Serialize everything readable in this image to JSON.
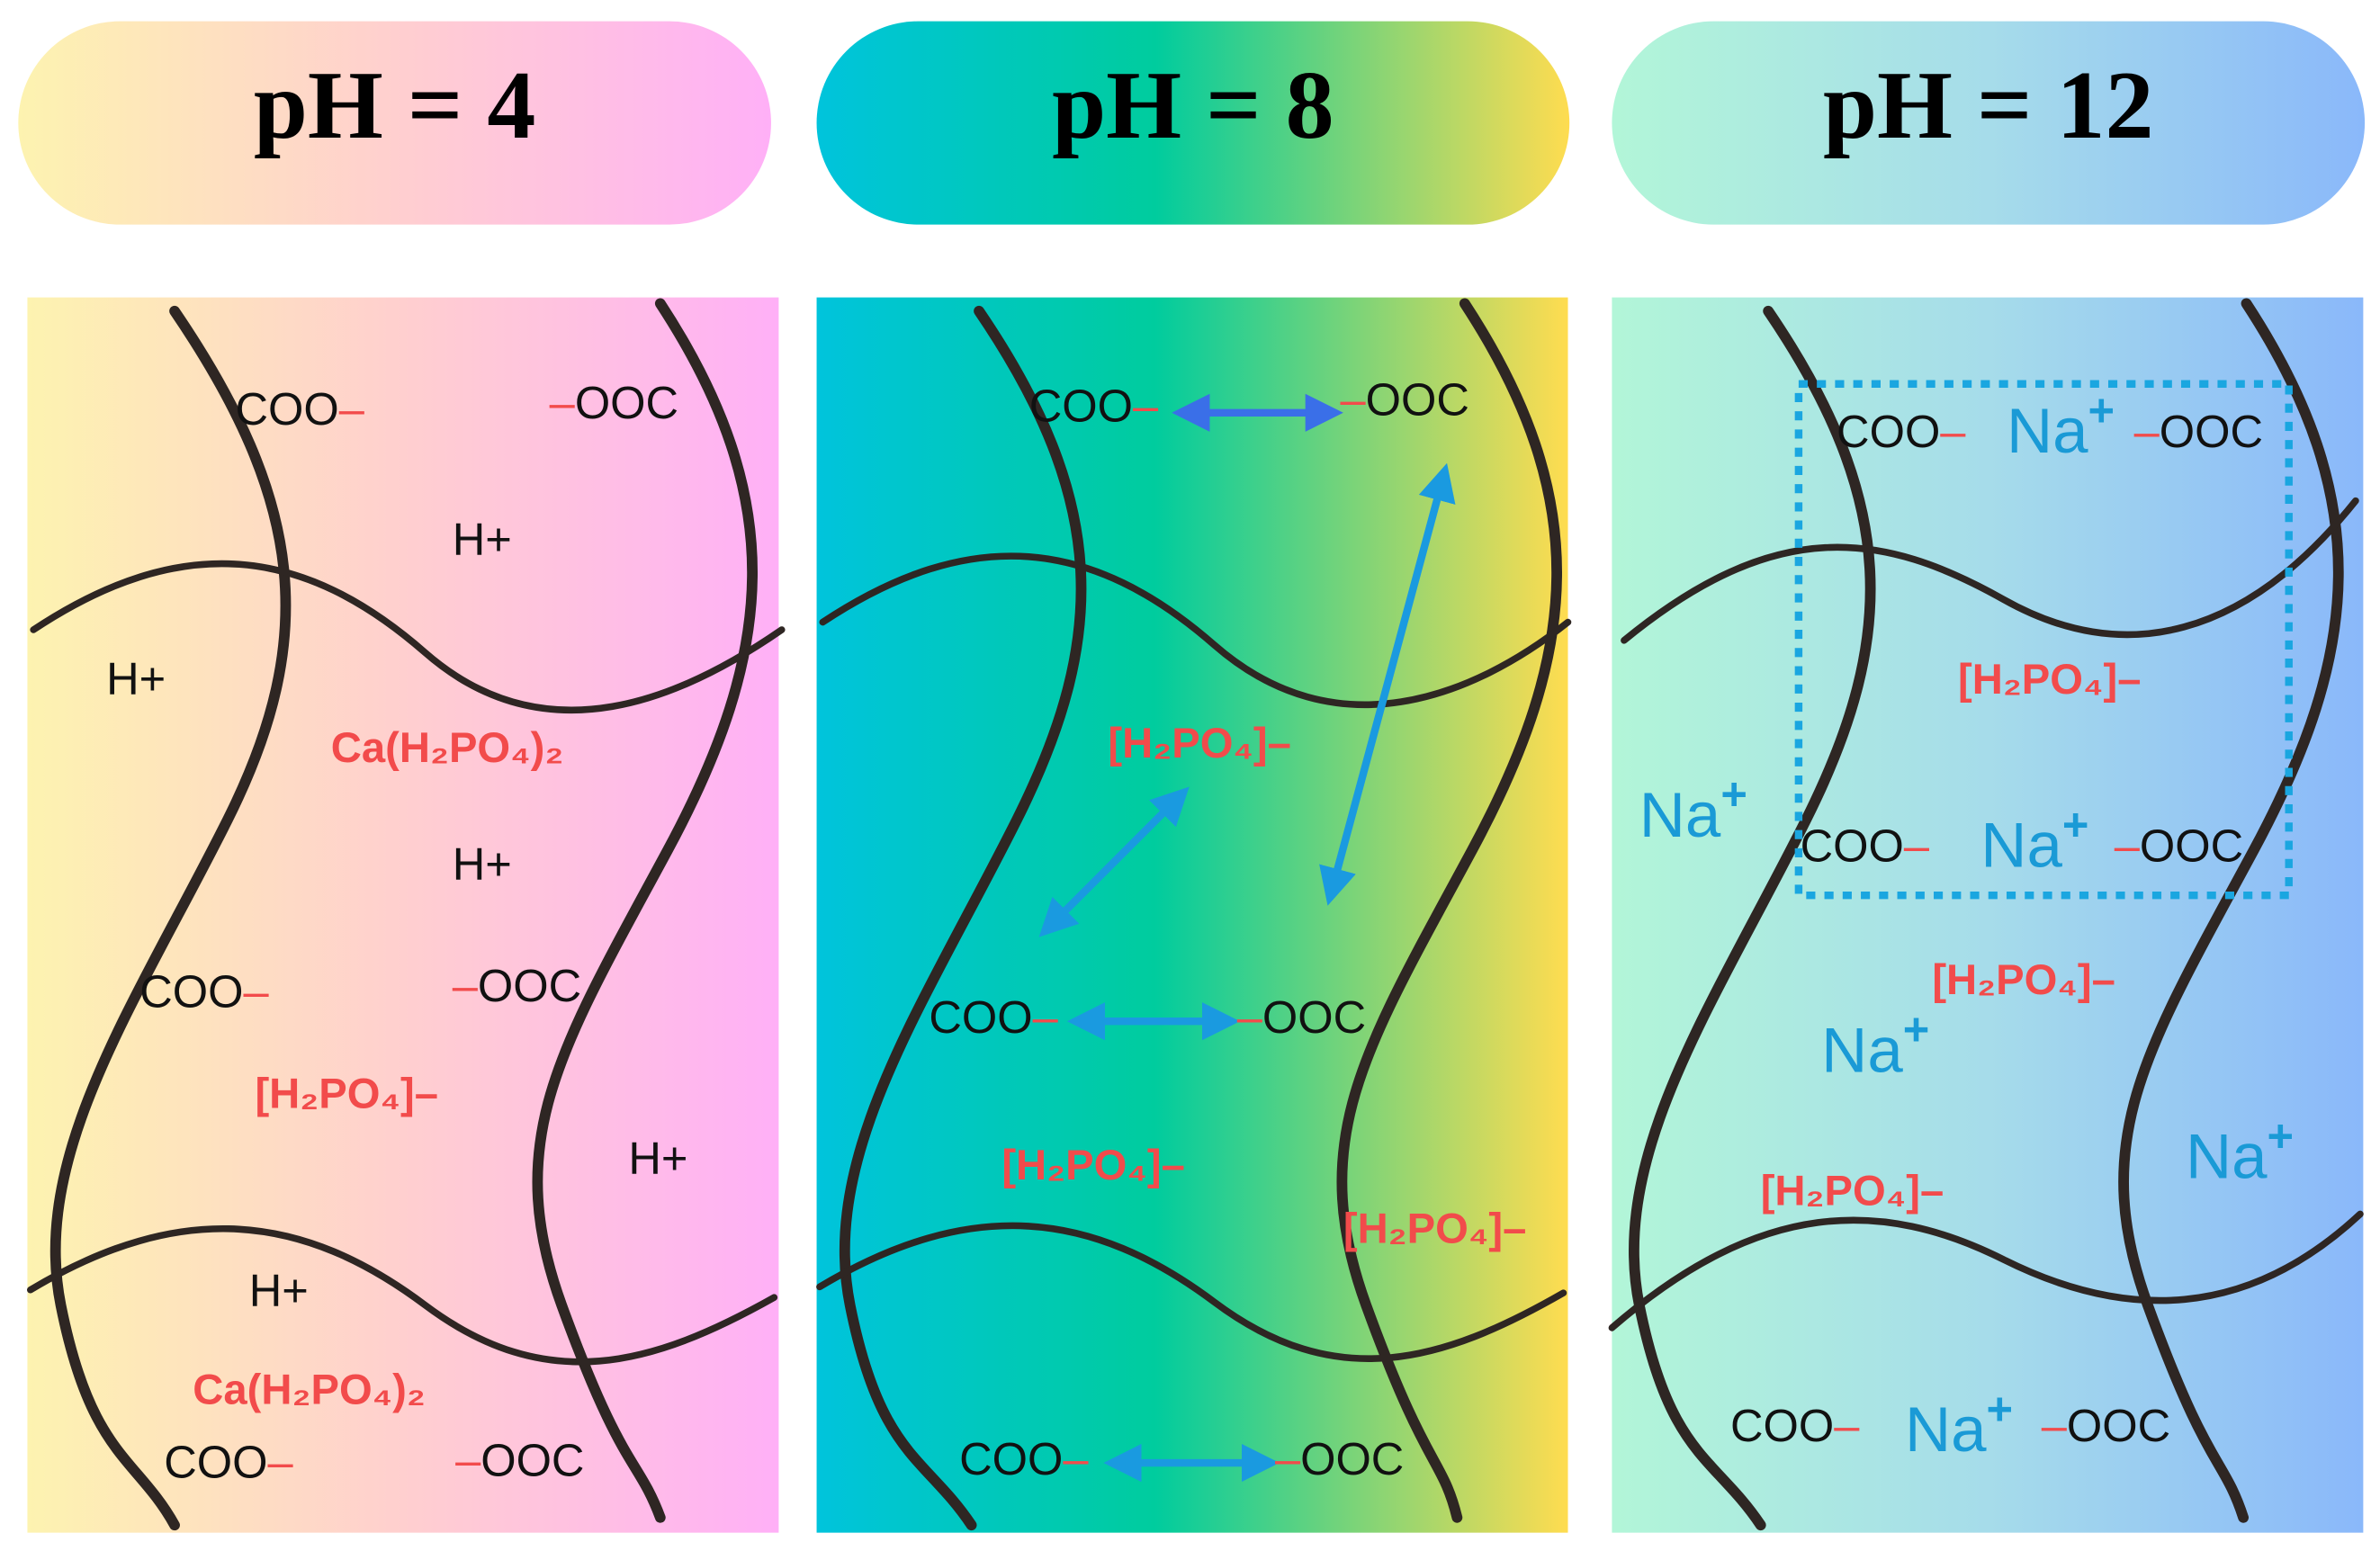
{
  "headers": [
    "pH = 4",
    "pH = 8",
    "pH = 12"
  ],
  "panels": [
    {
      "labels": [
        {
          "text": "COO",
          "post": "–"
        },
        {
          "pre": "–",
          "text": "OOC"
        },
        {
          "text": "H+"
        },
        {
          "text": "H+"
        },
        {
          "text": "Ca(H₂PO₄)₂",
          "color": "#f24b4b"
        },
        {
          "text": "H+"
        },
        {
          "text": "COO",
          "post": "–"
        },
        {
          "pre": "–",
          "text": "OOC"
        },
        {
          "text": "[H₂PO₄]–",
          "color": "#f24b4b"
        },
        {
          "text": "H+"
        },
        {
          "text": "H+"
        },
        {
          "text": "Ca(H₂PO₄)₂",
          "color": "#f24b4b"
        },
        {
          "text": "COO",
          "post": "–"
        },
        {
          "pre": "–",
          "text": "OOC"
        }
      ]
    },
    {
      "labels": [
        {
          "text": "COO",
          "post": "–"
        },
        {
          "pre": "–",
          "text": "OOC"
        },
        {
          "text": "[H₂PO₄]–",
          "color": "#f24b4b"
        },
        {
          "text": "COO",
          "post": "–"
        },
        {
          "pre": "–",
          "text": "OOC"
        },
        {
          "text": "[H₂PO₄]–",
          "color": "#f24b4b"
        },
        {
          "text": "[H₂PO₄]–",
          "color": "#f24b4b"
        },
        {
          "text": "COO",
          "post": "–"
        },
        {
          "pre": "–",
          "text": "OOC"
        }
      ]
    },
    {
      "labels": [
        {
          "text": "COO",
          "post": "–"
        },
        {
          "text": "Na",
          "sup": "+",
          "color": "#1a9ad6"
        },
        {
          "pre": "–",
          "text": "OOC"
        },
        {
          "text": "[H₂PO₄]–",
          "color": "#f24b4b"
        },
        {
          "text": "Na",
          "sup": "+",
          "color": "#1a9ad6"
        },
        {
          "text": "COO",
          "post": "–"
        },
        {
          "text": "Na",
          "sup": "+",
          "color": "#1a9ad6"
        },
        {
          "pre": "–",
          "text": "OOC"
        },
        {
          "text": "[H₂PO₄]–",
          "color": "#f24b4b"
        },
        {
          "text": "Na",
          "sup": "+",
          "color": "#1a9ad6"
        },
        {
          "text": "Na",
          "sup": "+",
          "color": "#1a9ad6"
        },
        {
          "text": "[H₂PO₄]–",
          "color": "#f24b4b"
        },
        {
          "text": "COO",
          "post": "–"
        },
        {
          "text": "Na",
          "sup": "+",
          "color": "#1a9ad6"
        },
        {
          "pre": "–",
          "text": "OOC"
        }
      ]
    }
  ]
}
